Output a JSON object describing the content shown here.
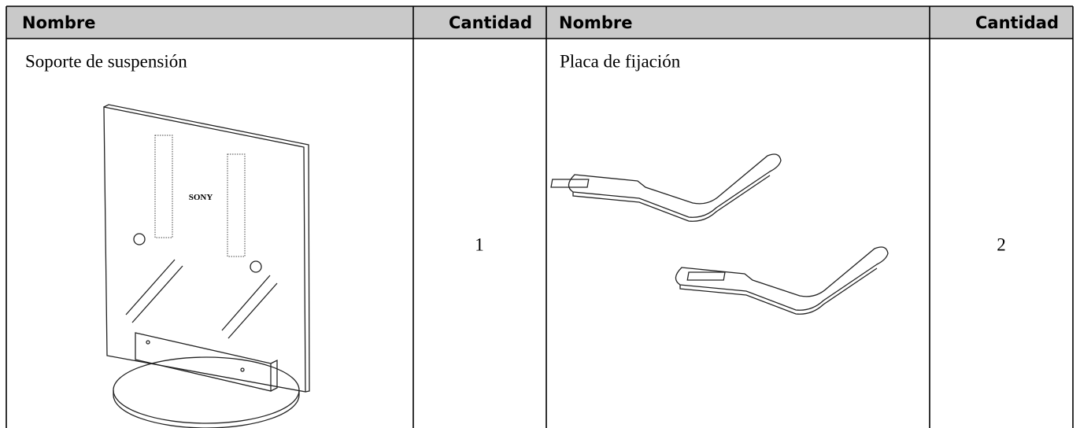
{
  "table": {
    "header": [
      "Nombre",
      "Cantidad",
      "Nombre",
      "Cantidad"
    ],
    "rows": [
      [
        "Soporte de suspensión",
        1,
        "Placa de fijación",
        2
      ]
    ]
  },
  "illustration_text": "SONY"
}
